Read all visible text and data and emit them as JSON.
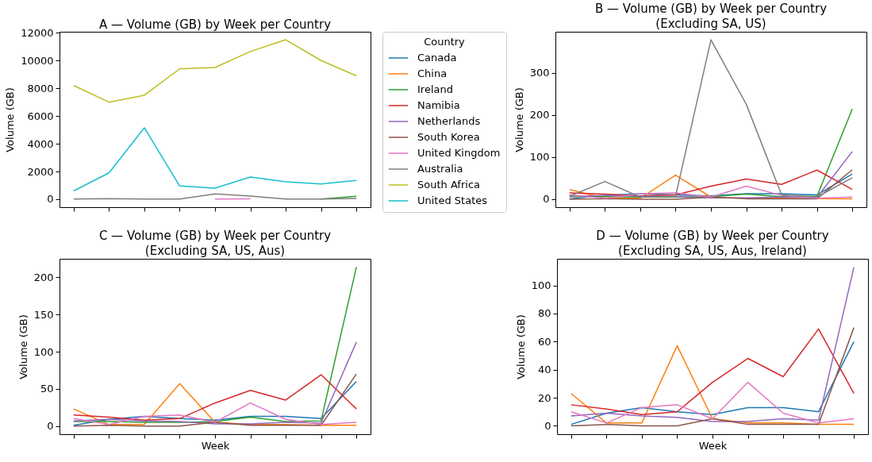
{
  "chart_data": [
    {
      "type": "line",
      "title": "A — Volume (GB) by Week per Country",
      "ylabel": "Volume (GB)",
      "legend_title": "Country",
      "legend": "right",
      "tick_labels": "y",
      "categories": [
        null,
        null,
        null,
        null,
        null,
        null,
        null,
        null,
        null
      ],
      "ylim": [
        -575,
        12075
      ],
      "yticks": [
        0,
        2000,
        4000,
        6000,
        8000,
        10000,
        12000
      ],
      "series": [
        {
          "name": "Canada",
          "color": "#1f77b4",
          "values": [
            null,
            null,
            null,
            null,
            null,
            null,
            null,
            null,
            null
          ]
        },
        {
          "name": "China",
          "color": "#ff7f0e",
          "values": [
            null,
            null,
            null,
            null,
            null,
            null,
            null,
            null,
            null
          ]
        },
        {
          "name": "Ireland",
          "color": "#2ca02c",
          "values": [
            null,
            null,
            null,
            null,
            null,
            null,
            null,
            7,
            214
          ]
        },
        {
          "name": "Namibia",
          "color": "#d62728",
          "values": [
            null,
            null,
            null,
            null,
            null,
            null,
            null,
            null,
            null
          ]
        },
        {
          "name": "Netherlands",
          "color": "#9467bd",
          "values": [
            null,
            null,
            null,
            null,
            null,
            null,
            null,
            null,
            null
          ]
        },
        {
          "name": "South Korea",
          "color": "#8c564b",
          "values": [
            null,
            null,
            null,
            null,
            null,
            null,
            null,
            null,
            null
          ]
        },
        {
          "name": "United Kingdom",
          "color": "#e377c2",
          "values": [
            null,
            null,
            null,
            null,
            5,
            31,
            null,
            null,
            null
          ]
        },
        {
          "name": "Australia",
          "color": "#7f7f7f",
          "values": [
            7,
            42,
            5,
            7,
            378,
            225,
            10,
            5,
            51
          ]
        },
        {
          "name": "South Africa",
          "color": "#bcbd22",
          "values": [
            8200,
            7000,
            7500,
            9400,
            9500,
            10650,
            11500,
            10000,
            8900
          ]
        },
        {
          "name": "United States",
          "color": "#17becf",
          "values": [
            600,
            1900,
            5150,
            950,
            800,
            1600,
            1250,
            1100,
            1350
          ]
        }
      ]
    },
    {
      "type": "line",
      "title": "B — Volume (GB) by Week per Country\n(Excluding SA, US)",
      "ylabel": "Volume (GB)",
      "tick_labels": "y",
      "categories": [
        null,
        null,
        null,
        null,
        null,
        null,
        null,
        null,
        null
      ],
      "ylim": [
        -19,
        397
      ],
      "yticks": [
        0,
        100,
        200,
        300
      ],
      "series": [
        {
          "color": "#1f77b4",
          "values": [
            1,
            9,
            13,
            10,
            8,
            13,
            13,
            10,
            60
          ]
        },
        {
          "color": "#ff7f0e",
          "values": [
            23,
            2,
            2,
            57,
            5,
            2,
            2,
            1,
            1
          ]
        },
        {
          "color": "#2ca02c",
          "values": [
            6,
            6,
            5,
            5,
            6,
            12,
            6,
            7,
            214
          ]
        },
        {
          "color": "#d62728",
          "values": [
            15,
            12,
            8,
            10,
            31,
            48,
            35,
            69,
            23
          ]
        },
        {
          "color": "#9467bd",
          "values": [
            7,
            9,
            7,
            6,
            3,
            3,
            5,
            4,
            113
          ]
        },
        {
          "color": "#8c564b",
          "values": [
            0,
            1,
            0,
            0,
            5,
            1,
            1,
            1,
            70
          ]
        },
        {
          "color": "#e377c2",
          "values": [
            10,
            2,
            13,
            15,
            5,
            31,
            9,
            2,
            5
          ]
        },
        {
          "color": "#7f7f7f",
          "values": [
            7,
            42,
            5,
            7,
            378,
            225,
            10,
            5,
            51
          ]
        }
      ]
    },
    {
      "type": "line",
      "title": "C — Volume (GB) by Week per Country\n(Excluding SA, US, Aus)",
      "xlabel": "Week",
      "ylabel": "Volume (GB)",
      "tick_labels": "y",
      "categories": [
        null,
        null,
        null,
        null,
        null,
        null,
        null,
        null,
        null
      ],
      "ylim": [
        -11,
        225
      ],
      "yticks": [
        0,
        50,
        100,
        150,
        200
      ],
      "series": [
        {
          "color": "#1f77b4",
          "values": [
            1,
            9,
            13,
            10,
            8,
            13,
            13,
            10,
            60
          ]
        },
        {
          "color": "#ff7f0e",
          "values": [
            23,
            2,
            2,
            57,
            5,
            2,
            2,
            1,
            1
          ]
        },
        {
          "color": "#2ca02c",
          "values": [
            6,
            6,
            5,
            5,
            6,
            12,
            6,
            7,
            214
          ]
        },
        {
          "color": "#d62728",
          "values": [
            15,
            12,
            8,
            10,
            31,
            48,
            35,
            69,
            23
          ]
        },
        {
          "color": "#9467bd",
          "values": [
            7,
            9,
            7,
            6,
            3,
            3,
            5,
            4,
            113
          ]
        },
        {
          "color": "#8c564b",
          "values": [
            0,
            1,
            0,
            0,
            5,
            1,
            1,
            1,
            70
          ]
        },
        {
          "color": "#e377c2",
          "values": [
            10,
            2,
            13,
            15,
            5,
            31,
            9,
            2,
            5
          ]
        }
      ]
    },
    {
      "type": "line",
      "title": "D — Volume (GB) by Week per Country\n(Excluding SA, US, Aus, Ireland)",
      "xlabel": "Week",
      "ylabel": "Volume (GB)",
      "tick_labels": "y",
      "categories": [
        null,
        null,
        null,
        null,
        null,
        null,
        null,
        null,
        null
      ],
      "ylim": [
        -6,
        119
      ],
      "yticks": [
        0,
        20,
        40,
        60,
        80,
        100
      ],
      "series": [
        {
          "color": "#1f77b4",
          "values": [
            1,
            9,
            13,
            10,
            8,
            13,
            13,
            10,
            60
          ]
        },
        {
          "color": "#ff7f0e",
          "values": [
            23,
            2,
            2,
            57,
            5,
            2,
            2,
            1,
            1
          ]
        },
        {
          "color": "#d62728",
          "values": [
            15,
            12,
            8,
            10,
            31,
            48,
            35,
            69,
            23
          ]
        },
        {
          "color": "#9467bd",
          "values": [
            7,
            9,
            7,
            6,
            3,
            3,
            5,
            4,
            113
          ]
        },
        {
          "color": "#8c564b",
          "values": [
            0,
            1,
            0,
            0,
            5,
            1,
            1,
            1,
            70
          ]
        },
        {
          "color": "#e377c2",
          "values": [
            10,
            2,
            13,
            15,
            5,
            31,
            9,
            2,
            5
          ]
        }
      ]
    }
  ]
}
